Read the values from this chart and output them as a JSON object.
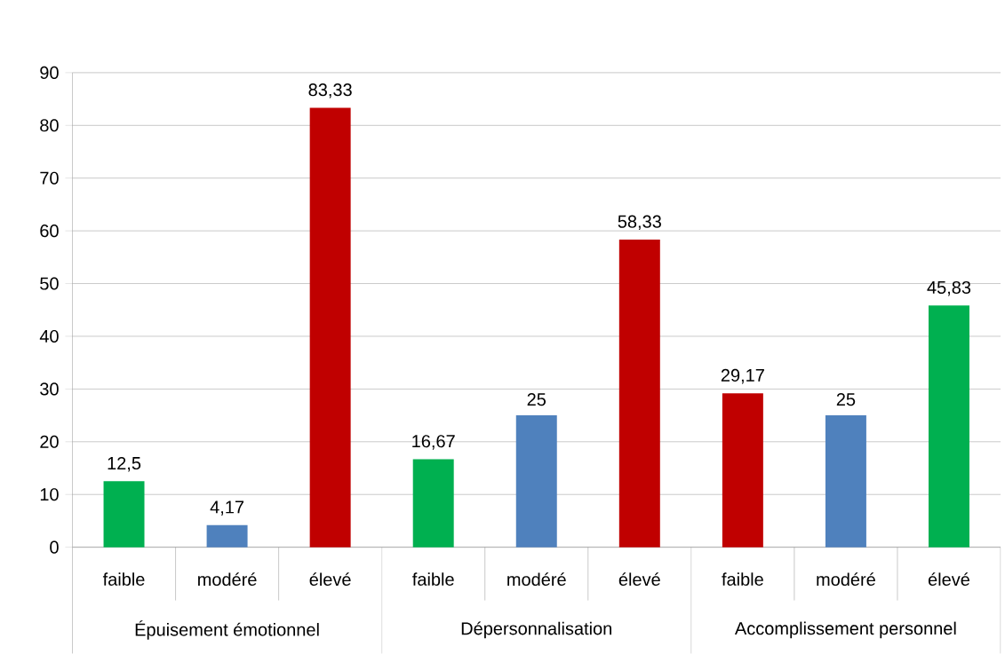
{
  "chart_data": {
    "type": "bar",
    "categories": [
      "faible",
      "modéré",
      "élevé",
      "faible",
      "modéré",
      "élevé",
      "faible",
      "modéré",
      "élevé"
    ],
    "values": [
      12.5,
      4.17,
      83.33,
      16.67,
      25,
      58.33,
      29.17,
      25,
      45.83
    ],
    "colors": [
      "#00b050",
      "#4f81bd",
      "#c00000",
      "#00b050",
      "#4f81bd",
      "#c00000",
      "#c00000",
      "#4f81bd",
      "#00b050"
    ],
    "value_labels": [
      "12,5",
      "4,17",
      "83,33",
      "16,67",
      "25",
      "58,33",
      "29,17",
      "25",
      "45,83"
    ],
    "annotations": [
      "Épuisement émotionnel",
      "Dépersonnalisation",
      "Accomplissement personnel"
    ],
    "ylim": [
      0,
      90
    ],
    "yticks": [
      0,
      10,
      20,
      30,
      40,
      50,
      60,
      70,
      80,
      90
    ],
    "grid": "y"
  }
}
